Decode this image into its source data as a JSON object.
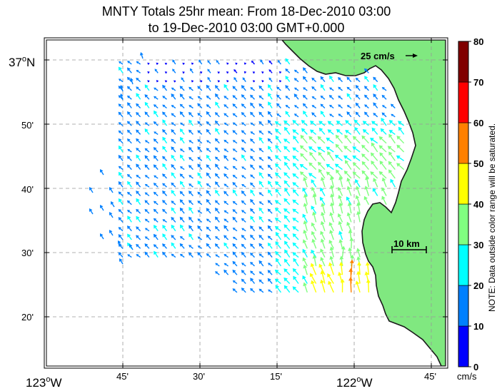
{
  "title": {
    "line1": "MNTY Totals 25hr mean: From 18-Dec-2010 03:00",
    "line2": "to 19-Dec-2010 03:00 GMT+0.000"
  },
  "axes": {
    "x_labels": [
      {
        "id": "123w",
        "main": "123",
        "sup": "o",
        "suffix": "W"
      },
      {
        "id": "45",
        "text": "45'"
      },
      {
        "id": "30",
        "text": "30'"
      },
      {
        "id": "15",
        "text": "15'"
      },
      {
        "id": "122w",
        "main": "122",
        "sup": "o",
        "suffix": "W"
      },
      {
        "id": "45b",
        "text": "45'"
      }
    ],
    "y_labels": [
      {
        "id": "37n",
        "main": "37",
        "sup": "o",
        "suffix": "N"
      },
      {
        "id": "50",
        "text": "50'"
      },
      {
        "id": "40",
        "text": "40'"
      },
      {
        "id": "30",
        "text": "30'"
      },
      {
        "id": "20",
        "text": "20'"
      }
    ]
  },
  "scale": {
    "speed_label": "25 cm/s",
    "distance_label": "10 km"
  },
  "colorbar": {
    "ticks": [
      "0",
      "10",
      "20",
      "30",
      "40",
      "50",
      "60",
      "70",
      "80"
    ],
    "colors": [
      "#0000ff",
      "#0080ff",
      "#00ffff",
      "#80ff80",
      "#ffff00",
      "#ff8000",
      "#ff0000",
      "#800000"
    ],
    "unit": "cm/s",
    "note": "NOTE: Data outside color range will be saturated."
  },
  "map_colors": {
    "land": "#80e880",
    "grid": "#999999"
  }
}
